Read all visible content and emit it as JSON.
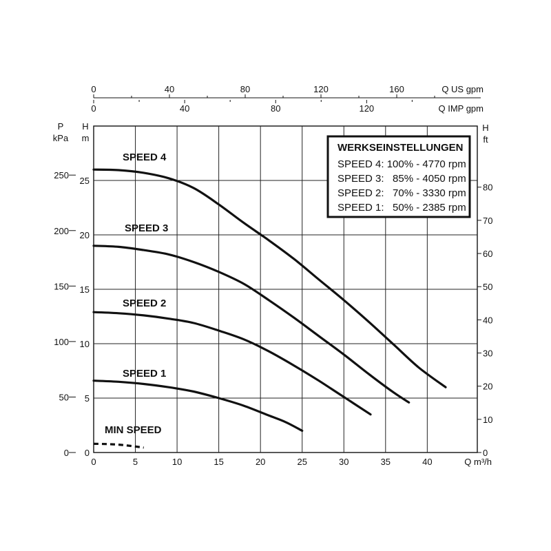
{
  "chart_data": {
    "type": "line",
    "xlabel": "Q  m³/h",
    "xlim": [
      0,
      46
    ],
    "x_ticks": [
      0,
      5,
      10,
      15,
      20,
      25,
      30,
      35,
      40
    ],
    "ylim_m": [
      0,
      30
    ],
    "y_m_label": [
      "H",
      "m"
    ],
    "y_m_ticks": [
      0,
      5,
      10,
      15,
      20,
      25
    ],
    "y_kpa_label": [
      "P",
      "kPa"
    ],
    "y_kpa_ticks": [
      0,
      50,
      100,
      150,
      200,
      250
    ],
    "y_ft_label": [
      "H",
      "ft"
    ],
    "y_ft_ticks": [
      0,
      10,
      20,
      30,
      40,
      50,
      60,
      70,
      80
    ],
    "top_axes": [
      {
        "label": "Q US gpm",
        "ticks": [
          0,
          40,
          80,
          120,
          160
        ],
        "factor": 4.4029
      },
      {
        "label": "Q IMP gpm",
        "ticks": [
          0,
          40,
          80,
          120
        ],
        "factor": 3.6662
      }
    ],
    "grid": true,
    "legend": {
      "position": "top-right",
      "title": "WERKSEINSTELLUNGEN",
      "rows": [
        "SPEED 4: 100% - 4770 rpm",
        "SPEED 3:   85% - 4050 rpm",
        "SPEED 2:   70% - 3330 rpm",
        "SPEED 1:   50% - 2385 rpm"
      ]
    },
    "series": [
      {
        "name": "SPEED 4",
        "x": [
          0,
          3,
          6,
          9,
          12,
          15,
          18,
          21,
          24,
          27,
          30,
          33,
          36,
          39,
          42.2
        ],
        "y": [
          26.0,
          25.95,
          25.7,
          25.2,
          24.3,
          22.8,
          21.1,
          19.5,
          17.8,
          15.9,
          14.0,
          12.0,
          9.9,
          7.8,
          6.0
        ]
      },
      {
        "name": "SPEED 3",
        "x": [
          0,
          3,
          6,
          9,
          12,
          15,
          18,
          21,
          24,
          27,
          30,
          33,
          36,
          37.8
        ],
        "y": [
          19.0,
          18.9,
          18.6,
          18.2,
          17.5,
          16.6,
          15.5,
          14.0,
          12.4,
          10.7,
          9.0,
          7.2,
          5.5,
          4.6
        ]
      },
      {
        "name": "SPEED 2",
        "x": [
          0,
          3,
          6,
          9,
          12,
          15,
          18,
          21,
          24,
          27,
          30,
          33.2
        ],
        "y": [
          12.9,
          12.8,
          12.6,
          12.3,
          11.9,
          11.2,
          10.4,
          9.3,
          8.0,
          6.6,
          5.1,
          3.5
        ]
      },
      {
        "name": "SPEED 1",
        "x": [
          0,
          3,
          6,
          9,
          12,
          15,
          18,
          21,
          23,
          25
        ],
        "y": [
          6.6,
          6.5,
          6.3,
          6.0,
          5.6,
          5.0,
          4.3,
          3.4,
          2.8,
          2.0
        ]
      },
      {
        "name": "MIN SPEED",
        "x": [
          0,
          1.5,
          3,
          4.5,
          6
        ],
        "y": [
          0.8,
          0.78,
          0.72,
          0.6,
          0.45
        ]
      }
    ]
  }
}
